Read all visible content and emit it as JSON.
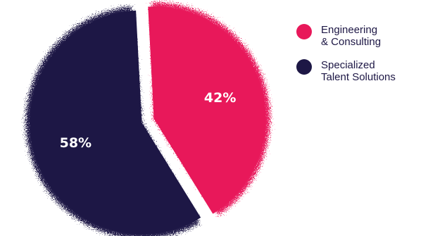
{
  "chart_data": {
    "type": "pie",
    "slices": [
      {
        "label": "Engineering\n& Consulting",
        "value": 42,
        "display": "42%",
        "color": "#e8185a"
      },
      {
        "label": "Specialized\nTalent Solutions",
        "value": 58,
        "display": "58%",
        "color": "#1d1745"
      }
    ],
    "legend_position": "right"
  }
}
